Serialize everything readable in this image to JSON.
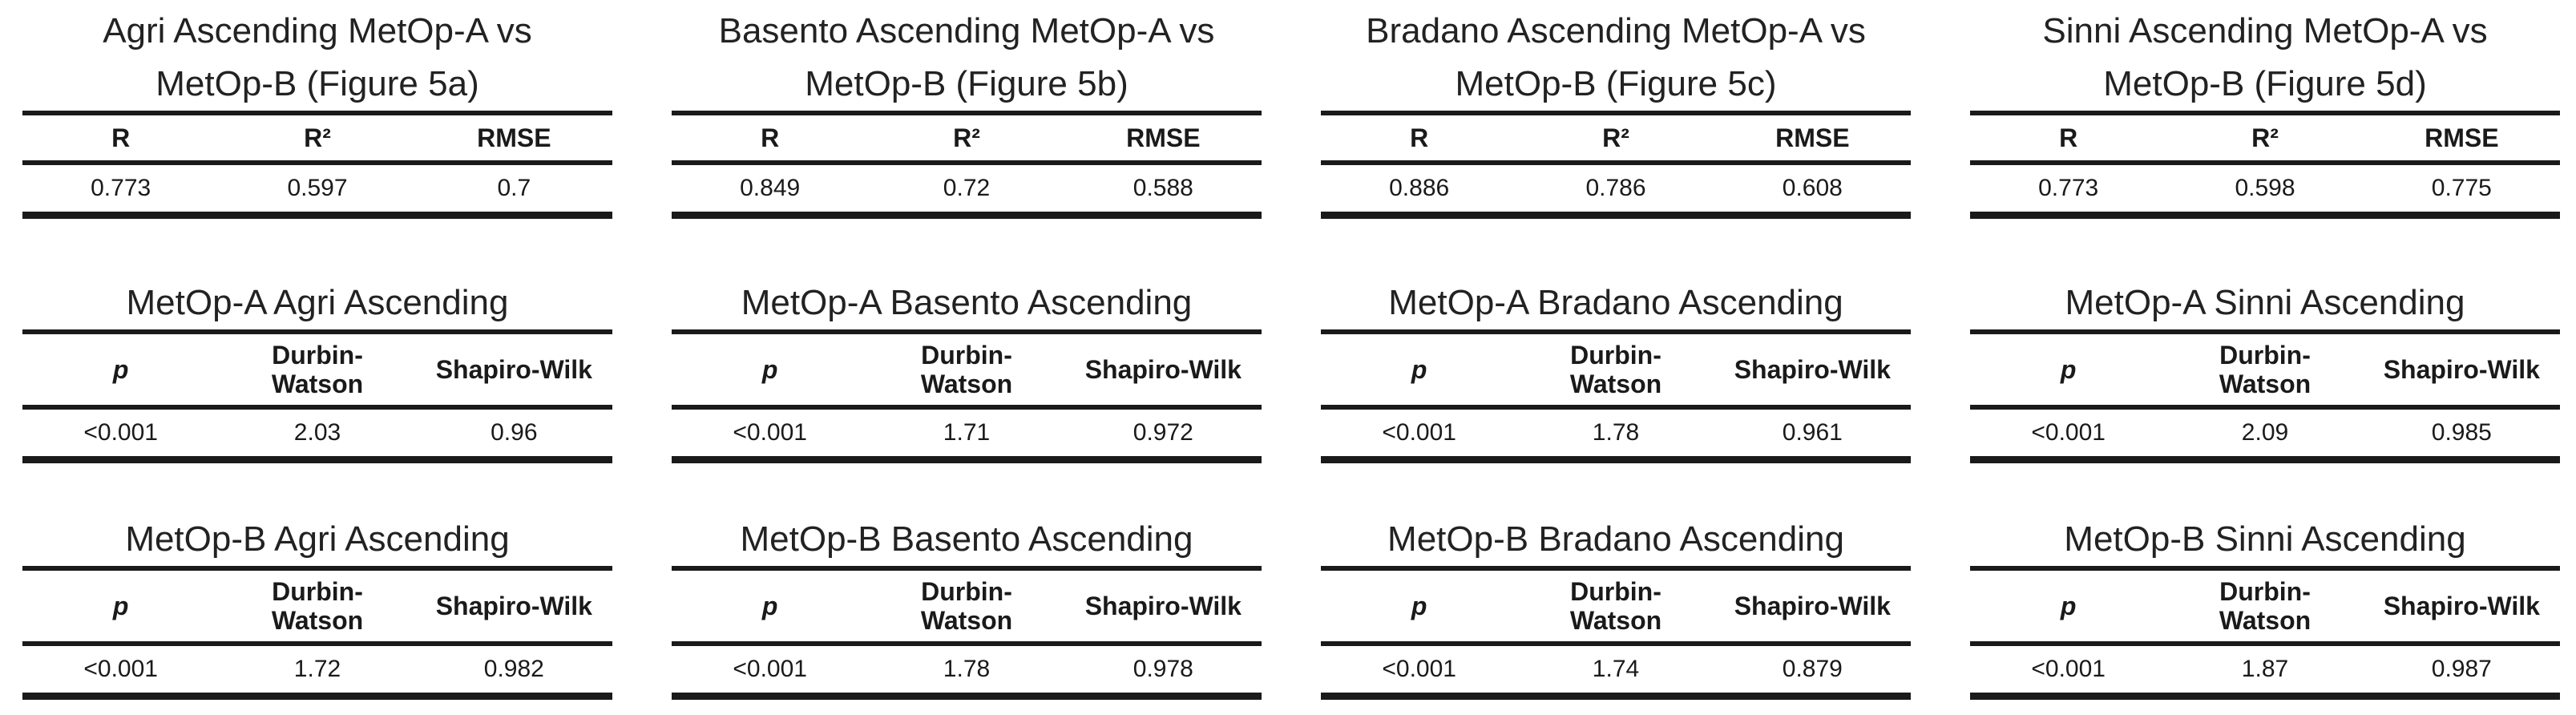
{
  "columns": [
    {
      "regression": {
        "title": "Agri Ascending MetOp-A vs MetOp-B (Figure 5a)",
        "headers": [
          "R",
          "R²",
          "RMSE"
        ],
        "values": [
          "0.773",
          "0.597",
          "0.7"
        ]
      },
      "metop_a": {
        "title": "MetOp-A Agri Ascending",
        "headers": [
          "p",
          "Durbin-Watson",
          "Shapiro-Wilk"
        ],
        "values": [
          "<0.001",
          "2.03",
          "0.96"
        ]
      },
      "metop_b": {
        "title": "MetOp-B Agri Ascending",
        "headers": [
          "p",
          "Durbin-Watson",
          "Shapiro-Wilk"
        ],
        "values": [
          "<0.001",
          "1.72",
          "0.982"
        ]
      }
    },
    {
      "regression": {
        "title": "Basento Ascending MetOp-A vs MetOp-B (Figure 5b)",
        "headers": [
          "R",
          "R²",
          "RMSE"
        ],
        "values": [
          "0.849",
          "0.72",
          "0.588"
        ]
      },
      "metop_a": {
        "title": "MetOp-A Basento Ascending",
        "headers": [
          "p",
          "Durbin-Watson",
          "Shapiro-Wilk"
        ],
        "values": [
          "<0.001",
          "1.71",
          "0.972"
        ]
      },
      "metop_b": {
        "title": "MetOp-B Basento Ascending",
        "headers": [
          "p",
          "Durbin-Watson",
          "Shapiro-Wilk"
        ],
        "values": [
          "<0.001",
          "1.78",
          "0.978"
        ]
      }
    },
    {
      "regression": {
        "title": "Bradano Ascending MetOp-A vs MetOp-B (Figure 5c)",
        "headers": [
          "R",
          "R²",
          "RMSE"
        ],
        "values": [
          "0.886",
          "0.786",
          "0.608"
        ]
      },
      "metop_a": {
        "title": "MetOp-A Bradano Ascending",
        "headers": [
          "p",
          "Durbin-Watson",
          "Shapiro-Wilk"
        ],
        "values": [
          "<0.001",
          "1.78",
          "0.961"
        ]
      },
      "metop_b": {
        "title": "MetOp-B Bradano Ascending",
        "headers": [
          "p",
          "Durbin-Watson",
          "Shapiro-Wilk"
        ],
        "values": [
          "<0.001",
          "1.74",
          "0.879"
        ]
      }
    },
    {
      "regression": {
        "title": "Sinni Ascending MetOp-A vs MetOp-B (Figure 5d)",
        "headers": [
          "R",
          "R²",
          "RMSE"
        ],
        "values": [
          "0.773",
          "0.598",
          "0.775"
        ]
      },
      "metop_a": {
        "title": "MetOp-A Sinni Ascending",
        "headers": [
          "p",
          "Durbin-Watson",
          "Shapiro-Wilk"
        ],
        "values": [
          "<0.001",
          "2.09",
          "0.985"
        ]
      },
      "metop_b": {
        "title": "MetOp-B Sinni Ascending",
        "headers": [
          "p",
          "Durbin-Watson",
          "Shapiro-Wilk"
        ],
        "values": [
          "<0.001",
          "1.87",
          "0.987"
        ]
      }
    }
  ]
}
